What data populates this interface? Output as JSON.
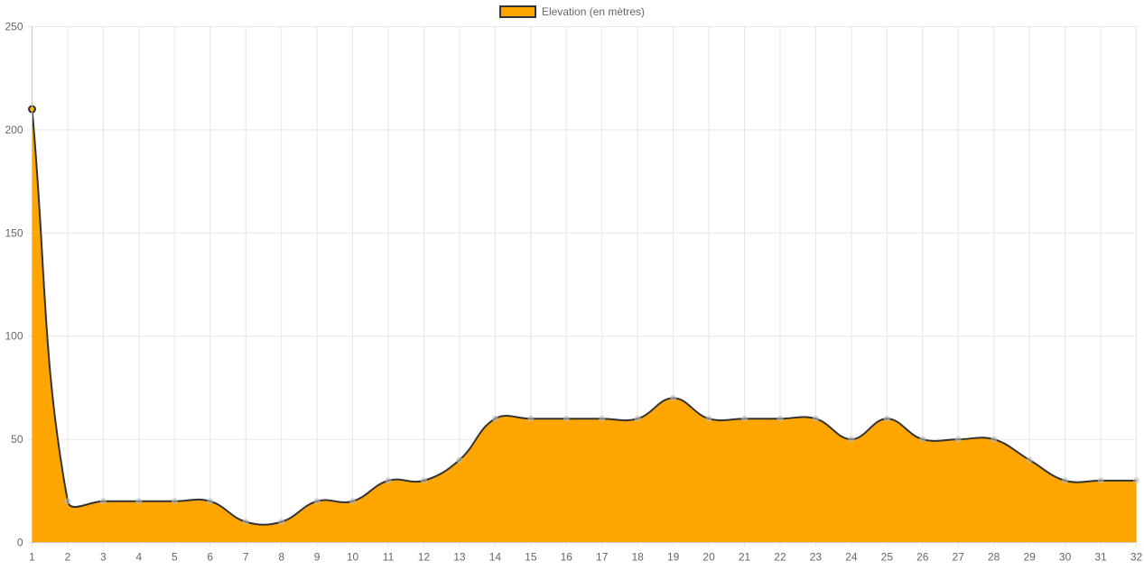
{
  "chart_data": {
    "type": "area",
    "x": [
      "1",
      "2",
      "3",
      "4",
      "5",
      "6",
      "7",
      "8",
      "9",
      "10",
      "11",
      "12",
      "13",
      "14",
      "15",
      "16",
      "17",
      "18",
      "19",
      "20",
      "21",
      "22",
      "23",
      "24",
      "25",
      "26",
      "27",
      "28",
      "29",
      "30",
      "31",
      "32"
    ],
    "series": [
      {
        "name": "Elevation (en mètres)",
        "values": [
          210,
          20,
          20,
          20,
          20,
          20,
          10,
          10,
          20,
          20,
          30,
          30,
          40,
          60,
          60,
          60,
          60,
          60,
          70,
          60,
          60,
          60,
          60,
          50,
          60,
          50,
          50,
          50,
          40,
          30,
          30,
          30
        ]
      }
    ],
    "ylim": [
      0,
      250
    ],
    "yticks": [
      "0",
      "50",
      "100",
      "150",
      "200",
      "250"
    ],
    "grid": true,
    "legend": "top-center",
    "xlabel": "",
    "ylabel": "",
    "title": ""
  },
  "colors": {
    "fill": "#ffa500",
    "line": "#333333",
    "grid": "#e6e6e6",
    "axis": "#c8c8c8",
    "point_hidden": "#bbbbbb",
    "point_first_border": "#333333",
    "point_first_fill": "#ffa500"
  }
}
